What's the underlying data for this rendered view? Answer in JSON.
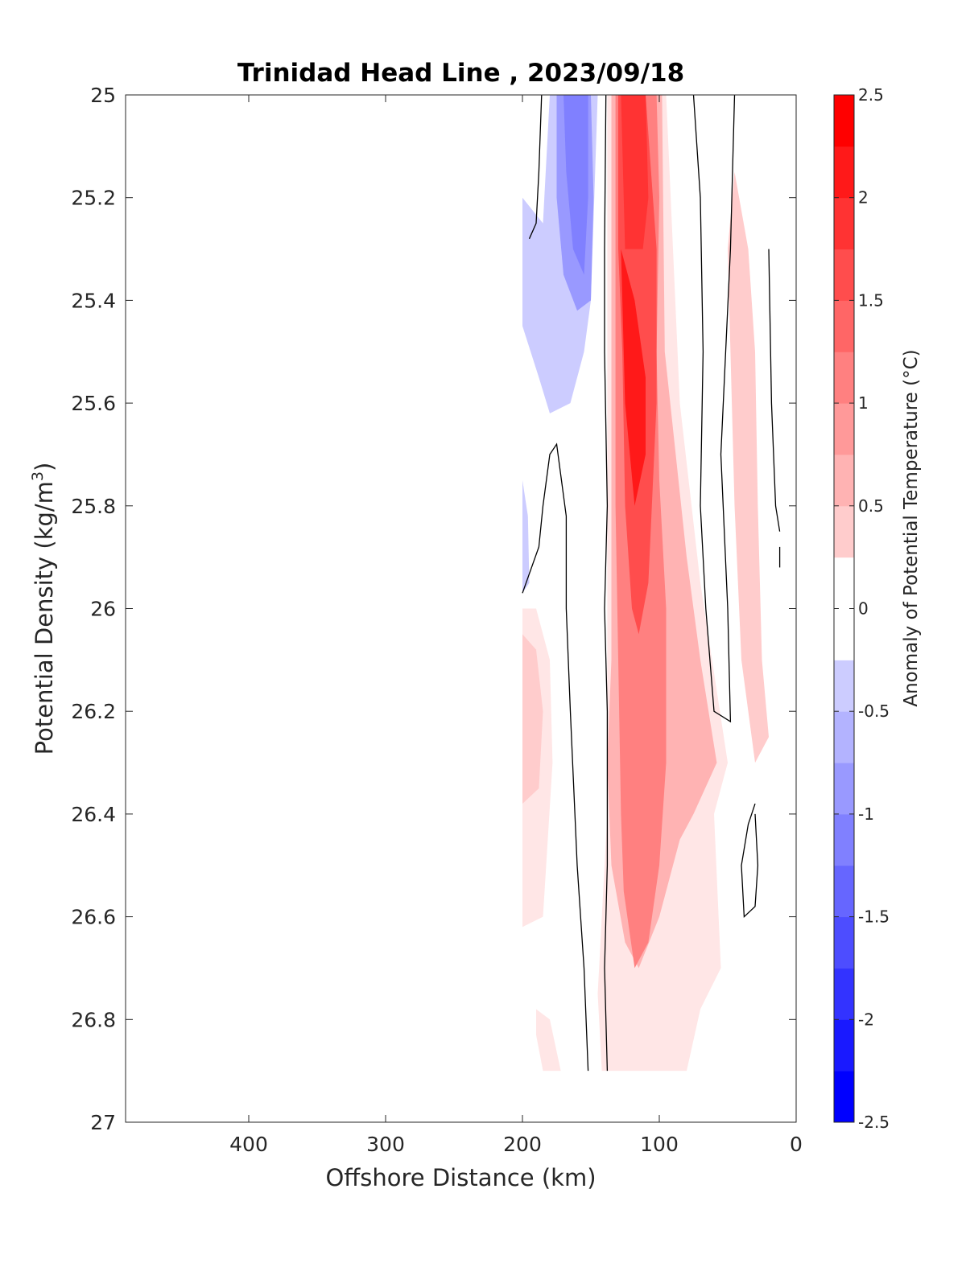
{
  "chart_data": {
    "type": "contour",
    "title": "Trinidad Head Line , 2023/09/18",
    "xlabel": "Offshore Distance (km)",
    "ylabel": "Potential Density (kg/m",
    "ylabel_sup": "3",
    "ylabel_close": ")",
    "xlim": [
      490,
      0
    ],
    "ylim": [
      25,
      27
    ],
    "x_ticks": [
      400,
      300,
      200,
      100,
      0
    ],
    "x_tick_labels": [
      "400",
      "300",
      "200",
      "100",
      "0"
    ],
    "y_ticks": [
      25,
      25.2,
      25.4,
      25.6,
      25.8,
      26,
      26.2,
      26.4,
      26.6,
      26.8,
      27
    ],
    "y_tick_labels": [
      "25",
      "25.2",
      "25.4",
      "25.6",
      "25.8",
      "26",
      "26.2",
      "26.4",
      "26.6",
      "26.8",
      "27"
    ],
    "y_reversed": true,
    "grid": false,
    "colorbar": {
      "label": "Anomaly of Potential Temperature (°C)",
      "range": [
        -2.5,
        2.5
      ],
      "level_step": 0.25,
      "tick_values": [
        2.5,
        2,
        1.5,
        1,
        0.5,
        0,
        -0.5,
        -1,
        -1.5,
        -2,
        -2.5
      ],
      "tick_labels": [
        "2.5",
        "2",
        "1.5",
        "1",
        "0.5",
        "0",
        "-0.5",
        "-1",
        "-1.5",
        "-2",
        "-2.5"
      ],
      "colormap": "blue-white-red",
      "color_min": "#0000ff",
      "color_max": "#ff0000"
    },
    "regions": [
      {
        "name": "cool-band-west",
        "anomaly": -0.5,
        "points": [
          [
            200,
            25.45
          ],
          [
            188,
            25.55
          ],
          [
            180,
            25.62
          ],
          [
            165,
            25.6
          ],
          [
            155,
            25.5
          ],
          [
            150,
            25.4
          ],
          [
            145,
            25.0
          ],
          [
            180,
            25.0
          ],
          [
            185,
            25.25
          ],
          [
            200,
            25.2
          ]
        ]
      },
      {
        "name": "cool-core-west",
        "anomaly": -1.0,
        "points": [
          [
            175,
            25.0
          ],
          [
            150,
            25.0
          ],
          [
            148,
            25.2
          ],
          [
            150,
            25.4
          ],
          [
            160,
            25.42
          ],
          [
            170,
            25.35
          ],
          [
            175,
            25.2
          ]
        ]
      },
      {
        "name": "cool-core-west-deep",
        "anomaly": -1.25,
        "points": [
          [
            170,
            25.0
          ],
          [
            152,
            25.0
          ],
          [
            152,
            25.2
          ],
          [
            155,
            25.35
          ],
          [
            163,
            25.3
          ],
          [
            168,
            25.15
          ]
        ]
      },
      {
        "name": "cool-strip-edge",
        "anomaly": -0.5,
        "points": [
          [
            200,
            25.75
          ],
          [
            196,
            25.82
          ],
          [
            195,
            25.95
          ],
          [
            200,
            25.97
          ]
        ]
      },
      {
        "name": "warm-main-outer",
        "anomaly": 0.25,
        "points": [
          [
            138,
            25.0
          ],
          [
            138,
            26.4
          ],
          [
            145,
            26.75
          ],
          [
            142,
            26.9
          ],
          [
            80,
            26.9
          ],
          [
            70,
            26.78
          ],
          [
            55,
            26.7
          ],
          [
            60,
            26.4
          ],
          [
            50,
            26.3
          ],
          [
            70,
            25.95
          ],
          [
            85,
            25.6
          ],
          [
            95,
            25.0
          ]
        ]
      },
      {
        "name": "warm-main-1",
        "anomaly": 0.75,
        "points": [
          [
            135,
            25.0
          ],
          [
            135,
            26.1
          ],
          [
            138,
            26.3
          ],
          [
            135,
            26.5
          ],
          [
            125,
            26.65
          ],
          [
            115,
            26.7
          ],
          [
            100,
            26.6
          ],
          [
            85,
            26.45
          ],
          [
            75,
            26.4
          ],
          [
            58,
            26.3
          ],
          [
            70,
            26.1
          ],
          [
            80,
            25.9
          ],
          [
            88,
            25.7
          ],
          [
            96,
            25.5
          ],
          [
            98,
            25.0
          ]
        ]
      },
      {
        "name": "warm-main-2",
        "anomaly": 1.25,
        "points": [
          [
            132,
            25.0
          ],
          [
            132,
            25.8
          ],
          [
            130,
            26.1
          ],
          [
            128,
            26.4
          ],
          [
            126,
            26.55
          ],
          [
            118,
            26.7
          ],
          [
            108,
            26.65
          ],
          [
            100,
            26.5
          ],
          [
            95,
            26.3
          ],
          [
            95,
            26.0
          ],
          [
            100,
            25.75
          ],
          [
            102,
            25.5
          ],
          [
            100,
            25.2
          ],
          [
            102,
            25.0
          ]
        ]
      },
      {
        "name": "warm-main-3",
        "anomaly": 1.75,
        "points": [
          [
            130,
            25.0
          ],
          [
            130,
            25.3
          ],
          [
            127,
            25.5
          ],
          [
            125,
            25.8
          ],
          [
            120,
            26.0
          ],
          [
            115,
            26.05
          ],
          [
            108,
            25.95
          ],
          [
            102,
            25.6
          ],
          [
            102,
            25.3
          ],
          [
            110,
            25.0
          ]
        ]
      },
      {
        "name": "warm-core",
        "anomaly": 2.25,
        "points": [
          [
            128,
            25.3
          ],
          [
            118,
            25.4
          ],
          [
            110,
            25.55
          ],
          [
            110,
            25.7
          ],
          [
            118,
            25.8
          ],
          [
            125,
            25.6
          ]
        ]
      },
      {
        "name": "warm-core-top",
        "anomaly": 2.0,
        "points": [
          [
            128,
            25.0
          ],
          [
            110,
            25.0
          ],
          [
            108,
            25.2
          ],
          [
            112,
            25.3
          ],
          [
            125,
            25.3
          ]
        ]
      },
      {
        "name": "warm-east-band",
        "anomaly": 0.5,
        "points": [
          [
            45,
            25.15
          ],
          [
            35,
            25.3
          ],
          [
            30,
            25.5
          ],
          [
            28,
            25.8
          ],
          [
            25,
            26.1
          ],
          [
            20,
            26.25
          ],
          [
            30,
            26.3
          ],
          [
            40,
            26.1
          ],
          [
            45,
            25.8
          ],
          [
            50,
            25.3
          ]
        ]
      },
      {
        "name": "warm-west-lower",
        "anomaly": 0.25,
        "points": [
          [
            200,
            26.0
          ],
          [
            190,
            26.0
          ],
          [
            180,
            26.1
          ],
          [
            178,
            26.3
          ],
          [
            185,
            26.6
          ],
          [
            200,
            26.62
          ]
        ]
      },
      {
        "name": "warm-west-lower-2",
        "anomaly": 0.5,
        "points": [
          [
            200,
            26.05
          ],
          [
            190,
            26.08
          ],
          [
            185,
            26.2
          ],
          [
            188,
            26.35
          ],
          [
            200,
            26.38
          ]
        ]
      },
      {
        "name": "warm-west-deep",
        "anomaly": 0.25,
        "points": [
          [
            190,
            26.78
          ],
          [
            180,
            26.8
          ],
          [
            172,
            26.9
          ],
          [
            185,
            26.9
          ],
          [
            190,
            26.83
          ]
        ]
      }
    ],
    "zero_contours": [
      {
        "name": "zero-contour-1",
        "points": [
          [
            200,
            25.97
          ],
          [
            188,
            25.88
          ],
          [
            185,
            25.8
          ],
          [
            180,
            25.7
          ],
          [
            175,
            25.68
          ],
          [
            168,
            25.82
          ],
          [
            168,
            26.0
          ],
          [
            165,
            26.2
          ],
          [
            160,
            26.5
          ],
          [
            155,
            26.7
          ],
          [
            152,
            26.9
          ]
        ]
      },
      {
        "name": "zero-contour-2",
        "points": [
          [
            186,
            25.0
          ],
          [
            188,
            25.15
          ],
          [
            190,
            25.25
          ],
          [
            195,
            25.28
          ]
        ]
      },
      {
        "name": "zero-contour-3",
        "points": [
          [
            139,
            25.0
          ],
          [
            140,
            25.3
          ],
          [
            140,
            25.5
          ],
          [
            138,
            25.8
          ],
          [
            140,
            26.0
          ],
          [
            138,
            26.2
          ],
          [
            138,
            26.5
          ],
          [
            140,
            26.7
          ],
          [
            138,
            26.9
          ]
        ]
      },
      {
        "name": "zero-contour-4",
        "points": [
          [
            75,
            25.0
          ],
          [
            70,
            25.2
          ],
          [
            68,
            25.5
          ],
          [
            70,
            25.8
          ],
          [
            66,
            26.0
          ],
          [
            60,
            26.2
          ],
          [
            48,
            26.22
          ],
          [
            50,
            26.0
          ],
          [
            55,
            25.7
          ],
          [
            48,
            25.3
          ],
          [
            45,
            25.0
          ]
        ]
      },
      {
        "name": "zero-contour-5",
        "points": [
          [
            20,
            25.3
          ],
          [
            18,
            25.6
          ],
          [
            15,
            25.8
          ],
          [
            12,
            25.85
          ]
        ]
      },
      {
        "name": "zero-contour-6",
        "points": [
          [
            30,
            26.38
          ],
          [
            35,
            26.42
          ],
          [
            40,
            26.5
          ],
          [
            38,
            26.6
          ],
          [
            30,
            26.58
          ],
          [
            28,
            26.5
          ],
          [
            30,
            26.4
          ]
        ]
      },
      {
        "name": "zero-contour-7",
        "points": [
          [
            12,
            25.88
          ],
          [
            12,
            25.92
          ]
        ]
      }
    ]
  }
}
